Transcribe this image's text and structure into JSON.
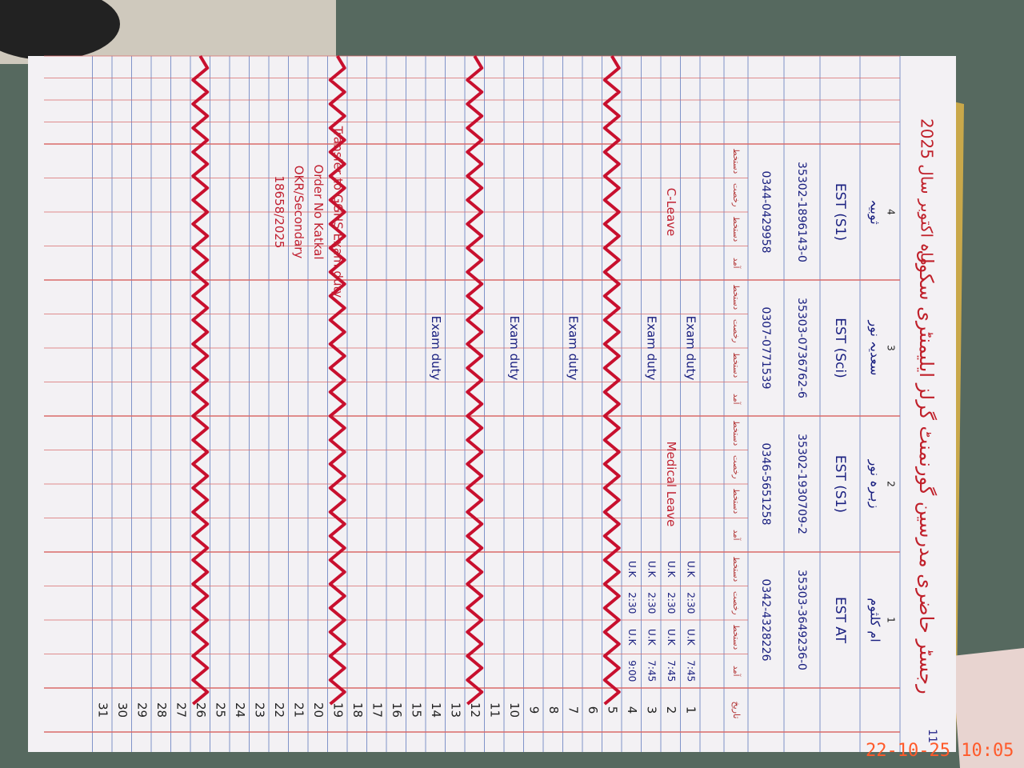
{
  "timestamp": "22-10-25 10:05",
  "header": {
    "page_number": "11",
    "title": "رجسٹر حاضری مدرسین گورنمنٹ گرلز ایلیمنٹری سکول",
    "month_year": "ماہ اکتوبر سال 2025",
    "day_column": "تاریخ",
    "subcolumns": [
      "آمد",
      "دستخط",
      "رخصت",
      "دستخط"
    ]
  },
  "teachers": [
    {
      "number": "1",
      "name": "ام کلثوم",
      "designation": "EST AT",
      "cnic": "35303-3649236-0",
      "phone": "0342-4328226",
      "cells": [
        [
          "7:45",
          "U.K",
          "2:30",
          "U.K"
        ],
        [
          "7:45",
          "U.K",
          "2:30",
          "U.K"
        ],
        [
          "7:45",
          "U.K",
          "2:30",
          "U.K"
        ],
        [
          "9:00",
          "U.K",
          "2:30",
          "U.K"
        ]
      ]
    },
    {
      "number": "2",
      "name": "زہرہ نور",
      "designation": "EST (S1)",
      "cnic": "35302-1930709-2",
      "phone": "0346-5651258",
      "cells": []
    },
    {
      "number": "3",
      "name": "سعدیہ نور",
      "designation": "EST (Sci)",
      "cnic": "35303-0736762-6",
      "phone": "0307-0771539",
      "cells": []
    },
    {
      "number": "4",
      "name": "ثوبیہ",
      "designation": "EST (S1)",
      "cnic": "35302-1896143-0",
      "phone": "0344-0429958",
      "cells": []
    }
  ],
  "days": [
    "1",
    "2",
    "3",
    "4",
    "5",
    "6",
    "7",
    "8",
    "9",
    "10",
    "11",
    "12",
    "13",
    "14",
    "15",
    "16",
    "17",
    "18",
    "19",
    "20",
    "21",
    "22",
    "23",
    "24",
    "25",
    "26",
    "27",
    "28",
    "29",
    "30",
    "31"
  ],
  "notes": [
    "Medical Leave",
    "C-Leave",
    "Exam duty",
    "Exam duty",
    "Exam duty",
    "Exam duty",
    "Exam duty",
    "Transfer to GGHS Exam duty",
    "Order No Katkal",
    "OKR/Secondary",
    "18658/2025"
  ]
}
